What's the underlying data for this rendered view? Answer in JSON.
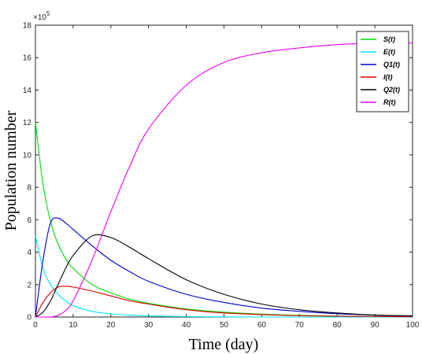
{
  "chart_data": {
    "type": "line",
    "xlabel": "Time (day)",
    "ylabel": "Population number",
    "y_multiplier_base": "×10",
    "y_multiplier_exp": "5",
    "xlim": [
      0,
      100
    ],
    "ylim": [
      0,
      18
    ],
    "xticks": [
      0,
      10,
      20,
      30,
      40,
      50,
      60,
      70,
      80,
      90,
      100
    ],
    "yticks": [
      0,
      2,
      4,
      6,
      8,
      10,
      12,
      14,
      16,
      18
    ],
    "legend_position": "top-right",
    "grid": false,
    "x": [
      0,
      2,
      4,
      6,
      8,
      10,
      15,
      20,
      25,
      30,
      40,
      50,
      60,
      70,
      80,
      90,
      100
    ],
    "series": [
      {
        "name": "S(t)",
        "color": "#00dd00",
        "values": [
          12.0,
          8.2,
          5.9,
          4.5,
          3.6,
          3.0,
          2.0,
          1.5,
          1.1,
          0.85,
          0.5,
          0.3,
          0.18,
          0.1,
          0.06,
          0.03,
          0.02
        ]
      },
      {
        "name": "E(t)",
        "color": "#00e5ff",
        "values": [
          5.0,
          3.0,
          2.0,
          1.4,
          1.0,
          0.7,
          0.35,
          0.2,
          0.12,
          0.07,
          0.03,
          0.01,
          0.0,
          0.0,
          0.0,
          0.0,
          0.0
        ]
      },
      {
        "name": "Q1(t)",
        "color": "#0000cc",
        "values": [
          0.0,
          3.5,
          5.8,
          6.1,
          5.8,
          5.4,
          4.4,
          3.5,
          2.8,
          2.2,
          1.4,
          0.9,
          0.55,
          0.35,
          0.2,
          0.12,
          0.07
        ]
      },
      {
        "name": "I(t)",
        "color": "#dd0000",
        "values": [
          0.0,
          0.9,
          1.5,
          1.85,
          1.9,
          1.85,
          1.6,
          1.3,
          1.0,
          0.8,
          0.45,
          0.25,
          0.15,
          0.08,
          0.05,
          0.03,
          0.02
        ]
      },
      {
        "name": "Q2(t)",
        "color": "#000000",
        "values": [
          0.0,
          0.3,
          1.0,
          2.0,
          3.0,
          3.8,
          5.0,
          4.9,
          4.3,
          3.6,
          2.3,
          1.4,
          0.8,
          0.45,
          0.25,
          0.12,
          0.06
        ]
      },
      {
        "name": "R(t)",
        "color": "#ee00ee",
        "values": [
          0.0,
          0.0,
          0.0,
          0.1,
          0.4,
          1.0,
          3.5,
          6.5,
          9.3,
          11.6,
          14.3,
          15.7,
          16.3,
          16.6,
          16.8,
          16.9,
          16.9
        ]
      }
    ]
  }
}
